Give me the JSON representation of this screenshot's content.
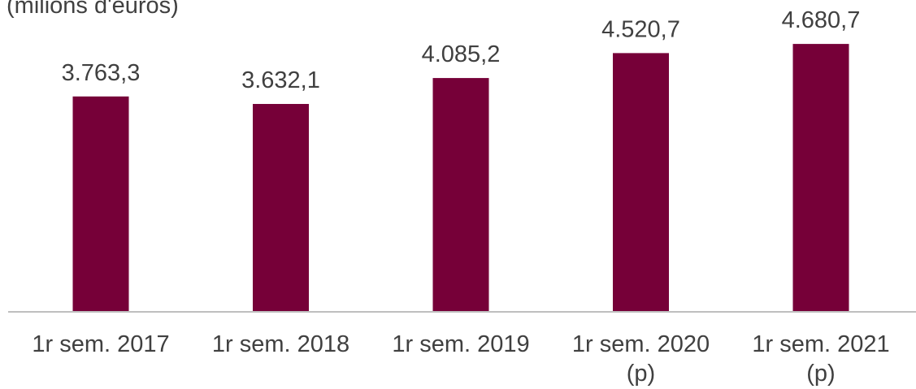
{
  "chart_data": {
    "type": "bar",
    "unit_label": "(milions d'euros)",
    "categories": [
      [
        "1r sem. 2017"
      ],
      [
        "1r sem. 2018"
      ],
      [
        "1r sem. 2019"
      ],
      [
        "1r sem. 2020",
        "(p)"
      ],
      [
        "1r sem. 2021",
        "(p)"
      ]
    ],
    "values": [
      3763.3,
      3632.1,
      4085.2,
      4520.7,
      4680.7
    ],
    "value_labels": [
      "3.763,3",
      "3.632,1",
      "4.085,2",
      "4.520,7",
      "4.680,7"
    ],
    "ylim": [
      0,
      5000
    ],
    "grid": false,
    "colors": {
      "bar": "#760038",
      "axis": "#bfbfbf",
      "text": "#404040"
    }
  }
}
